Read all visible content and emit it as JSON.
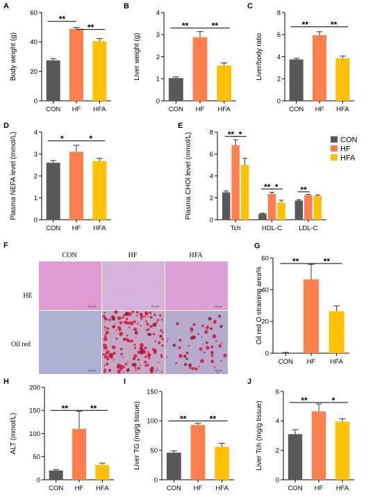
{
  "colors": {
    "con": "#595959",
    "hf": "#FF7F4F",
    "hfa": "#FFC107"
  },
  "chart_data": [
    {
      "id": "A",
      "type": "bar",
      "letter": "A",
      "ylabel": "Body weight (g)",
      "categories": [
        "CON",
        "HF",
        "HFA"
      ],
      "values": [
        27.5,
        49,
        40.5
      ],
      "errors": [
        1.2,
        0.8,
        1.8
      ],
      "ylim": [
        0,
        60
      ],
      "yticks": [
        0,
        20,
        40,
        60
      ],
      "yticklabels": [
        "0",
        "20",
        "40",
        "60"
      ],
      "sig": [
        {
          "from": 0,
          "to": 1,
          "level": 54,
          "label": "**"
        },
        {
          "from": 1,
          "to": 2,
          "level": 48.5,
          "label": "**"
        }
      ]
    },
    {
      "id": "B",
      "type": "bar",
      "letter": "B",
      "ylabel": "Liver weight (g)",
      "categories": [
        "CON",
        "HF",
        "HFA"
      ],
      "values": [
        1.03,
        2.88,
        1.6
      ],
      "errors": [
        0.05,
        0.25,
        0.12
      ],
      "ylim": [
        0,
        4
      ],
      "yticks": [
        0,
        1,
        2,
        3,
        4
      ],
      "yticklabels": [
        "0",
        "1",
        "2",
        "3",
        "4"
      ],
      "sig": [
        {
          "from": 0,
          "to": 1,
          "level": 3.3,
          "label": "**"
        },
        {
          "from": 1,
          "to": 2,
          "level": 3.3,
          "label": "**"
        }
      ]
    },
    {
      "id": "C",
      "type": "bar",
      "letter": "C",
      "ylabel": "Liver/body ratio",
      "categories": [
        "CON",
        "HF",
        "HFA"
      ],
      "values": [
        3.75,
        5.95,
        3.85
      ],
      "errors": [
        0.1,
        0.3,
        0.2
      ],
      "ylim": [
        0,
        8
      ],
      "yticks": [
        0,
        2,
        4,
        6,
        8
      ],
      "yticklabels": [
        "0",
        "2",
        "4",
        "6",
        "8"
      ],
      "sig": [
        {
          "from": 0,
          "to": 1,
          "level": 6.7,
          "label": "**"
        },
        {
          "from": 1,
          "to": 2,
          "level": 6.7,
          "label": "**"
        }
      ]
    },
    {
      "id": "D",
      "type": "bar",
      "letter": "D",
      "ylabel": "Plasma NEFA level (mmol/L)",
      "categories": [
        "CON",
        "HF",
        "HFA"
      ],
      "values": [
        2.6,
        3.1,
        2.68
      ],
      "errors": [
        0.1,
        0.3,
        0.12
      ],
      "ylim": [
        0,
        4
      ],
      "yticks": [
        0,
        1,
        2,
        3,
        4
      ],
      "yticklabels": [
        "0",
        "1",
        "2",
        "3",
        "4"
      ],
      "sig": [
        {
          "from": 0,
          "to": 1,
          "level": 3.6,
          "label": "*"
        },
        {
          "from": 1,
          "to": 2,
          "level": 3.6,
          "label": "*"
        }
      ]
    },
    {
      "id": "E",
      "type": "bar",
      "letter": "E",
      "ylabel": "Plasma CHOl level (mmol/L)",
      "categories": [
        "Tch",
        "HDL-C",
        "LDL-C"
      ],
      "series": [
        {
          "name": "CON",
          "values": [
            2.5,
            0.55,
            1.75
          ],
          "errors": [
            0.12,
            0.04,
            0.08
          ]
        },
        {
          "name": "HF",
          "values": [
            6.8,
            2.35,
            2.25
          ],
          "errors": [
            0.5,
            0.15,
            0.06
          ]
        },
        {
          "name": "HFA",
          "values": [
            5.0,
            1.58,
            2.18
          ],
          "errors": [
            0.6,
            0.2,
            0.08
          ]
        }
      ],
      "ylim": [
        0,
        8
      ],
      "yticks": [
        0,
        2,
        4,
        6,
        8
      ],
      "yticklabels": [
        "0",
        "2",
        "4",
        "6",
        "8"
      ],
      "legend": "top-right",
      "sig": [
        {
          "group": 0,
          "from": 0,
          "to": 1,
          "level": 7.6,
          "label": "**"
        },
        {
          "group": 0,
          "from": 1,
          "to": 2,
          "level": 7.6,
          "label": "*"
        },
        {
          "group": 1,
          "from": 0,
          "to": 1,
          "level": 2.8,
          "label": "**"
        },
        {
          "group": 1,
          "from": 1,
          "to": 2,
          "level": 2.8,
          "label": "*"
        },
        {
          "group": 2,
          "from": 0,
          "to": 1,
          "level": 2.55,
          "label": "**"
        }
      ]
    },
    {
      "id": "G",
      "type": "bar",
      "letter": "G",
      "ylabel": "Oil red O straining area%",
      "categories": [
        "CON",
        "HF",
        "HFA"
      ],
      "values": [
        0.3,
        46.5,
        26.5
      ],
      "errors": [
        0.2,
        9.5,
        3.3
      ],
      "ylim": [
        0,
        60
      ],
      "yticks": [
        0,
        20,
        40,
        60
      ],
      "yticklabels": [
        "0",
        "20",
        "40",
        "60"
      ],
      "sig": [
        {
          "from": 0,
          "to": 1,
          "level": 56.5,
          "label": "**"
        },
        {
          "from": 1,
          "to": 2,
          "level": 56.5,
          "label": "**"
        }
      ]
    },
    {
      "id": "H",
      "type": "bar",
      "letter": "H",
      "ylabel": "ALT (mmol/L)",
      "categories": [
        "CON",
        "HF",
        "HFA"
      ],
      "values": [
        20,
        110,
        32
      ],
      "errors": [
        2,
        38,
        4
      ],
      "ylim": [
        0,
        200
      ],
      "yticks": [
        0,
        50,
        100,
        150,
        200
      ],
      "yticklabels": [
        "0",
        "50",
        "100",
        "150",
        "200"
      ],
      "sig": [
        {
          "from": 0,
          "to": 1,
          "level": 150,
          "label": "**"
        },
        {
          "from": 1,
          "to": 2,
          "level": 150,
          "label": "**"
        }
      ]
    },
    {
      "id": "I",
      "type": "bar",
      "letter": "I",
      "ylabel": "Liver TG (mg/g tissue)",
      "categories": [
        "CON",
        "HF",
        "HFA"
      ],
      "values": [
        46,
        93,
        56
      ],
      "errors": [
        3,
        3,
        6
      ],
      "ylim": [
        0,
        150
      ],
      "yticks": [
        0,
        50,
        100,
        150
      ],
      "yticklabels": [
        "0",
        "50",
        "100",
        "150"
      ],
      "sig": [
        {
          "from": 0,
          "to": 1,
          "level": 100,
          "label": "**"
        },
        {
          "from": 1,
          "to": 2,
          "level": 100,
          "label": "**"
        }
      ]
    },
    {
      "id": "J",
      "type": "bar",
      "letter": "J",
      "ylabel": "Liver Tch (mg/g tissue)",
      "categories": [
        "CON",
        "HF",
        "HFA"
      ],
      "values": [
        3.1,
        4.65,
        3.95
      ],
      "errors": [
        0.3,
        0.5,
        0.2
      ],
      "ylim": [
        0,
        6
      ],
      "yticks": [
        0,
        2,
        4,
        6
      ],
      "yticklabels": [
        "0",
        "2",
        "4",
        "6"
      ],
      "sig": [
        {
          "from": 0,
          "to": 1,
          "level": 5.25,
          "label": "**"
        },
        {
          "from": 1,
          "to": 2,
          "level": 5.25,
          "label": "*"
        }
      ]
    }
  ],
  "micrograph": {
    "letter": "F",
    "columns": [
      "CON",
      "HF",
      "HFA"
    ],
    "rows": [
      "HE",
      "Oil red"
    ],
    "scale_label": "20 μm"
  }
}
